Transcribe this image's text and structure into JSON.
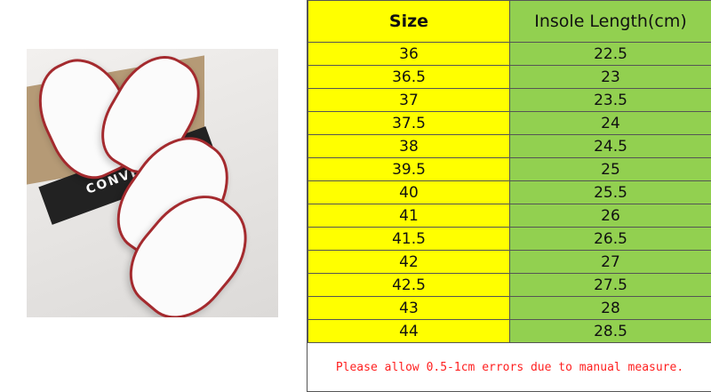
{
  "photo": {
    "box_brand": "CONVERSE"
  },
  "table": {
    "headers": [
      "Size",
      "Insole Length(cm)"
    ],
    "rows": [
      [
        "36",
        "22.5"
      ],
      [
        "36.5",
        "23"
      ],
      [
        "37",
        "23.5"
      ],
      [
        "37.5",
        "24"
      ],
      [
        "38",
        "24.5"
      ],
      [
        "39.5",
        "25"
      ],
      [
        "40",
        "25.5"
      ],
      [
        "41",
        "26"
      ],
      [
        "41.5",
        "26.5"
      ],
      [
        "42",
        "27"
      ],
      [
        "42.5",
        "27.5"
      ],
      [
        "43",
        "28"
      ],
      [
        "44",
        "28.5"
      ]
    ]
  },
  "note": "Please allow 0.5-1cm errors due to manual measure.",
  "colors": {
    "size_col": "#ffff00",
    "length_col": "#92d050",
    "note": "#ff2020"
  }
}
